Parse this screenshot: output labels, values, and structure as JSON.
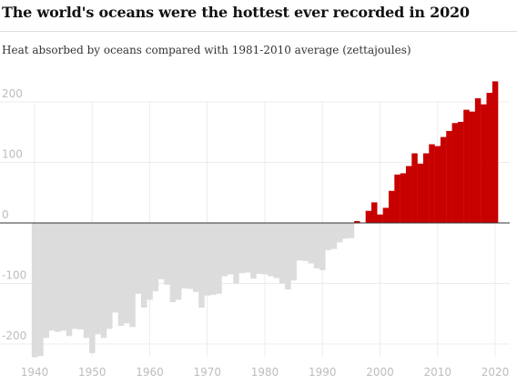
{
  "title": "The world's oceans were the hottest ever recorded in 2020",
  "subtitle": "Heat absorbed by oceans compared with 1981-2010 average (zettajoules)",
  "colors": {
    "positive": "#c70000",
    "negative": "#dcdcdc",
    "grid": "#ececec",
    "zero_line": "#333333",
    "tick_text": "#bdbdbd"
  },
  "chart_data": {
    "type": "bar",
    "title": "The world's oceans were the hottest ever recorded in 2020",
    "subtitle": "Heat absorbed by oceans compared with 1981-2010 average (zettajoules)",
    "xlabel": "",
    "ylabel": "",
    "grid": true,
    "ylim": [
      -230,
      240
    ],
    "xlim": [
      1939,
      2021
    ],
    "yticks": [
      200,
      100,
      0,
      -100,
      -200
    ],
    "ytick_labels": [
      "200",
      "100",
      "0",
      "-100",
      "-200"
    ],
    "xticks": [
      1940,
      1950,
      1960,
      1970,
      1980,
      1990,
      2000,
      2010,
      2020
    ],
    "xtick_labels": [
      "1940",
      "1950",
      "1960",
      "1970",
      "1980",
      "1990",
      "2000",
      "2010",
      "2020"
    ],
    "x": [
      1940,
      1941,
      1942,
      1943,
      1944,
      1945,
      1946,
      1947,
      1948,
      1949,
      1950,
      1951,
      1952,
      1953,
      1954,
      1955,
      1956,
      1957,
      1958,
      1959,
      1960,
      1961,
      1962,
      1963,
      1964,
      1965,
      1966,
      1967,
      1968,
      1969,
      1970,
      1971,
      1972,
      1973,
      1974,
      1975,
      1976,
      1977,
      1978,
      1979,
      1980,
      1981,
      1982,
      1983,
      1984,
      1985,
      1986,
      1987,
      1988,
      1989,
      1990,
      1991,
      1992,
      1993,
      1994,
      1995,
      1996,
      1997,
      1998,
      1999,
      2000,
      2001,
      2002,
      2003,
      2004,
      2005,
      2006,
      2007,
      2008,
      2009,
      2010,
      2011,
      2012,
      2013,
      2014,
      2015,
      2016,
      2017,
      2018,
      2019,
      2020
    ],
    "values": [
      -222,
      -220,
      -190,
      -178,
      -180,
      -178,
      -187,
      -175,
      -176,
      -190,
      -215,
      -184,
      -190,
      -175,
      -148,
      -170,
      -166,
      -172,
      -117,
      -140,
      -127,
      -113,
      -93,
      -102,
      -131,
      -127,
      -108,
      -109,
      -114,
      -140,
      -120,
      -119,
      -117,
      -88,
      -85,
      -100,
      -83,
      -82,
      -92,
      -84,
      -85,
      -88,
      -91,
      -100,
      -110,
      -95,
      -62,
      -63,
      -67,
      -75,
      -78,
      -45,
      -43,
      -32,
      -26,
      -25,
      3,
      0,
      20,
      34,
      14,
      25,
      53,
      80,
      82,
      94,
      115,
      98,
      115,
      130,
      127,
      142,
      152,
      165,
      167,
      187,
      184,
      206,
      196,
      215,
      234
    ]
  }
}
